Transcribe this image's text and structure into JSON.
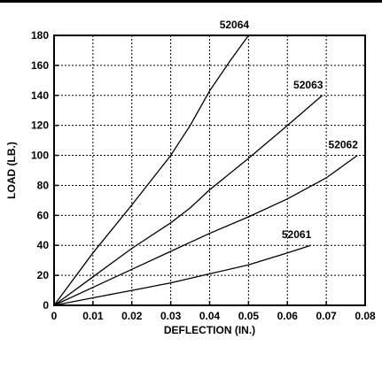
{
  "chart_data": {
    "type": "line",
    "title": "",
    "xlabel": "DEFLECTION (IN.)",
    "ylabel": "LOAD (LB.)",
    "xlim": [
      0,
      0.08
    ],
    "ylim": [
      0,
      180
    ],
    "x_ticks": [
      "0",
      "0.01",
      "0.02",
      "0.03",
      "0.04",
      "0.05",
      "0.06",
      "0.07",
      "0.08"
    ],
    "y_ticks": [
      "0",
      "20",
      "40",
      "60",
      "80",
      "100",
      "120",
      "140",
      "160",
      "180"
    ],
    "grid": true,
    "grid_style": "dotted",
    "line_color": "#000000",
    "series": [
      {
        "name": "52064",
        "points": [
          [
            0,
            0
          ],
          [
            0.01,
            35
          ],
          [
            0.02,
            67
          ],
          [
            0.03,
            100
          ],
          [
            0.035,
            120
          ],
          [
            0.04,
            143
          ],
          [
            0.045,
            162
          ],
          [
            0.05,
            180
          ]
        ]
      },
      {
        "name": "52063",
        "points": [
          [
            0,
            0
          ],
          [
            0.01,
            19
          ],
          [
            0.02,
            38
          ],
          [
            0.03,
            55
          ],
          [
            0.035,
            65
          ],
          [
            0.04,
            77
          ],
          [
            0.05,
            98
          ],
          [
            0.06,
            120
          ],
          [
            0.069,
            140
          ]
        ]
      },
      {
        "name": "52062",
        "points": [
          [
            0,
            0
          ],
          [
            0.01,
            12
          ],
          [
            0.02,
            24
          ],
          [
            0.03,
            36
          ],
          [
            0.04,
            48
          ],
          [
            0.05,
            59
          ],
          [
            0.06,
            71
          ],
          [
            0.07,
            85
          ],
          [
            0.078,
            100
          ]
        ]
      },
      {
        "name": "52061",
        "points": [
          [
            0,
            0
          ],
          [
            0.01,
            5
          ],
          [
            0.02,
            10
          ],
          [
            0.03,
            15
          ],
          [
            0.04,
            21
          ],
          [
            0.05,
            27
          ],
          [
            0.06,
            35
          ],
          [
            0.066,
            40
          ]
        ]
      }
    ]
  }
}
